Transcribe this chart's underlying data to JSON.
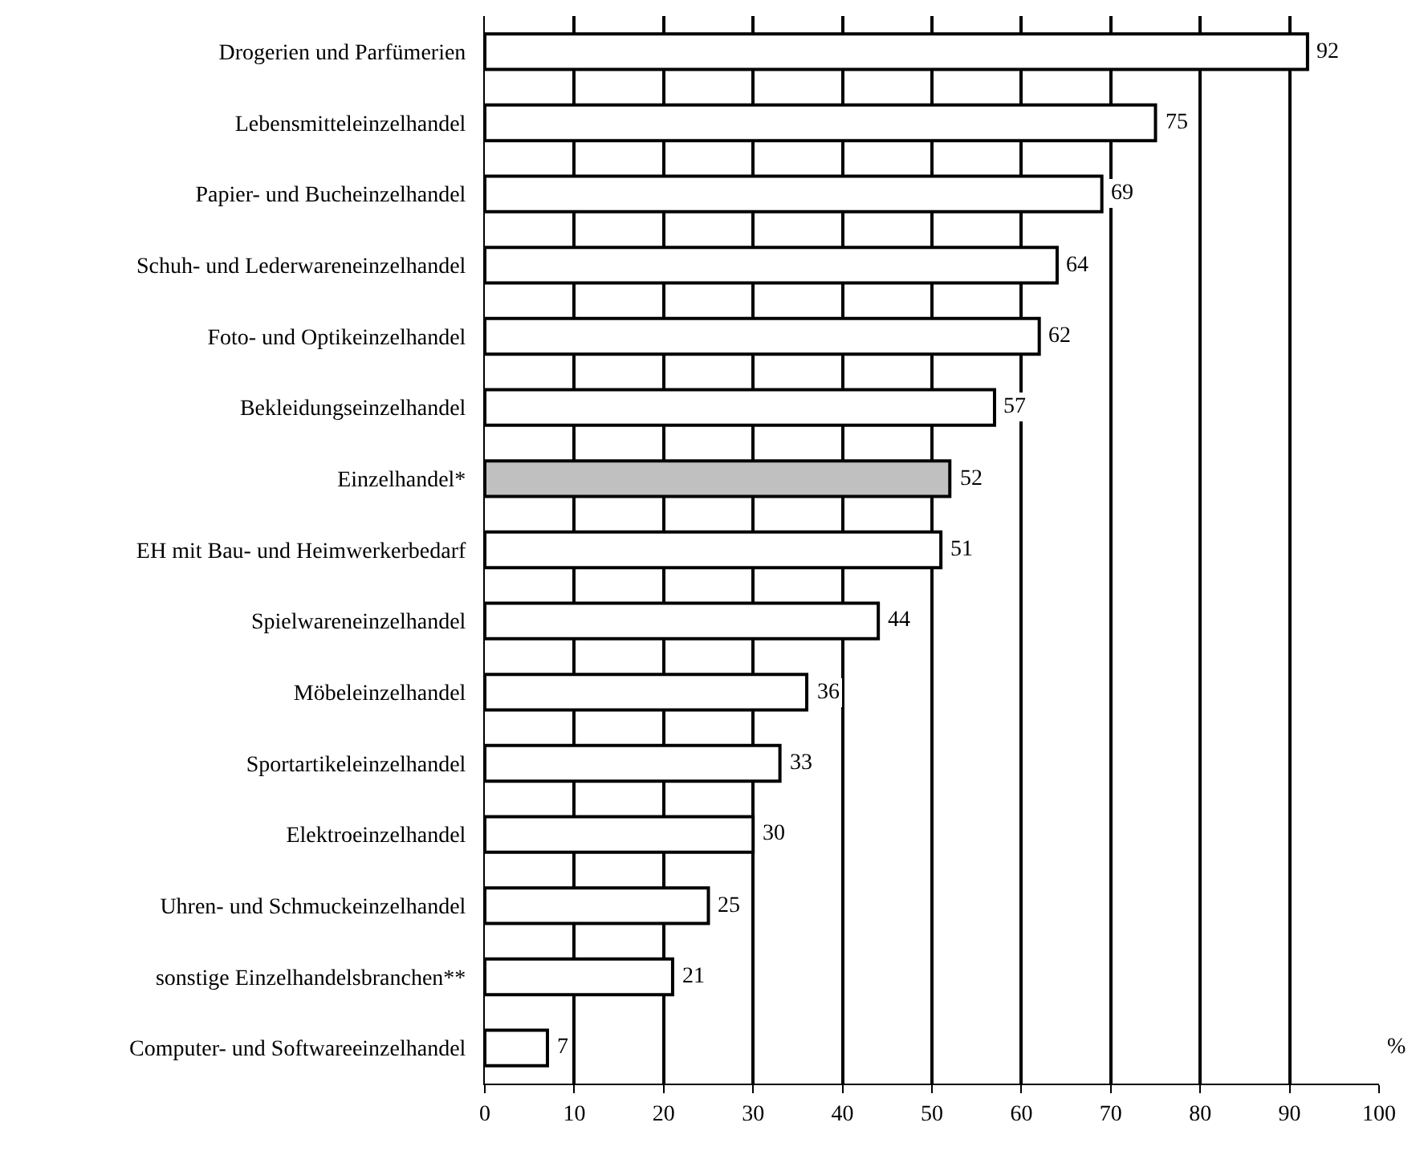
{
  "chart_data": {
    "type": "bar",
    "orientation": "horizontal",
    "categories": [
      "Drogerien und Parfümerien",
      "Lebensmitteleinzelhandel",
      "Papier- und Bucheinzelhandel",
      "Schuh- und Lederwareneinzelhandel",
      "Foto- und Optikeinzelhandel",
      "Bekleidungseinzelhandel",
      "Einzelhandel*",
      "EH mit Bau- und Heimwerkerbedarf",
      "Spielwareneinzelhandel",
      "Möbeleinzelhandel",
      "Sportartikeleinzelhandel",
      "Elektroeinzelhandel",
      "Uhren- und Schmuckeinzelhandel",
      "sonstige Einzelhandelsbranchen**",
      "Computer- und Softwareeinzelhandel"
    ],
    "values": [
      92,
      75,
      69,
      64,
      62,
      57,
      52,
      51,
      44,
      36,
      33,
      30,
      25,
      21,
      7
    ],
    "colors": [
      "#ffffff",
      "#ffffff",
      "#ffffff",
      "#ffffff",
      "#ffffff",
      "#ffffff",
      "#c0c0c0",
      "#ffffff",
      "#ffffff",
      "#ffffff",
      "#ffffff",
      "#ffffff",
      "#ffffff",
      "#ffffff",
      "#ffffff"
    ],
    "data_labels": true,
    "xlim": [
      0,
      100
    ],
    "xticks": [
      0,
      10,
      20,
      30,
      40,
      50,
      60,
      70,
      80,
      90,
      100
    ],
    "grid": "x",
    "annotations": [
      "%"
    ]
  }
}
